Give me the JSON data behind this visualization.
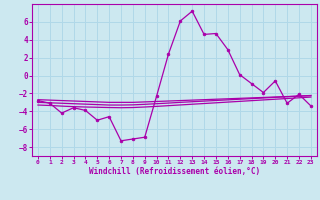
{
  "xlabel": "Windchill (Refroidissement éolien,°C)",
  "bg_color": "#cce8f0",
  "grid_color": "#b0d8e8",
  "line_color": "#aa00aa",
  "xlim": [
    -0.5,
    23.5
  ],
  "ylim": [
    -9.0,
    8.0
  ],
  "yticks": [
    -8,
    -6,
    -4,
    -2,
    0,
    2,
    4,
    6
  ],
  "xticks": [
    0,
    1,
    2,
    3,
    4,
    5,
    6,
    7,
    8,
    9,
    10,
    11,
    12,
    13,
    14,
    15,
    16,
    17,
    18,
    19,
    20,
    21,
    22,
    23
  ],
  "hours": [
    0,
    1,
    2,
    3,
    4,
    5,
    6,
    7,
    8,
    9,
    10,
    11,
    12,
    13,
    14,
    15,
    16,
    17,
    18,
    19,
    20,
    21,
    22,
    23
  ],
  "curve1": [
    -2.8,
    -3.1,
    -4.2,
    -3.6,
    -3.9,
    -5.0,
    -4.6,
    -7.3,
    -7.1,
    -6.9,
    -2.3,
    2.4,
    6.1,
    7.2,
    4.6,
    4.7,
    2.9,
    0.1,
    -0.9,
    -1.9,
    -0.6,
    -3.1,
    -2.1,
    -3.4
  ],
  "line2": [
    -2.7,
    -2.75,
    -2.8,
    -2.85,
    -2.9,
    -2.95,
    -3.0,
    -3.0,
    -3.0,
    -2.95,
    -2.9,
    -2.85,
    -2.8,
    -2.75,
    -2.7,
    -2.65,
    -2.6,
    -2.55,
    -2.5,
    -2.45,
    -2.4,
    -2.35,
    -2.3,
    -2.25
  ],
  "line3": [
    -3.0,
    -3.05,
    -3.1,
    -3.15,
    -3.2,
    -3.25,
    -3.3,
    -3.3,
    -3.28,
    -3.22,
    -3.15,
    -3.08,
    -3.0,
    -2.93,
    -2.86,
    -2.79,
    -2.72,
    -2.65,
    -2.58,
    -2.51,
    -2.44,
    -2.37,
    -2.3,
    -2.23
  ],
  "line4": [
    -3.3,
    -3.35,
    -3.42,
    -3.48,
    -3.52,
    -3.55,
    -3.58,
    -3.6,
    -3.58,
    -3.52,
    -3.45,
    -3.37,
    -3.29,
    -3.21,
    -3.13,
    -3.05,
    -2.97,
    -2.89,
    -2.81,
    -2.73,
    -2.65,
    -2.57,
    -2.49,
    -2.41
  ]
}
